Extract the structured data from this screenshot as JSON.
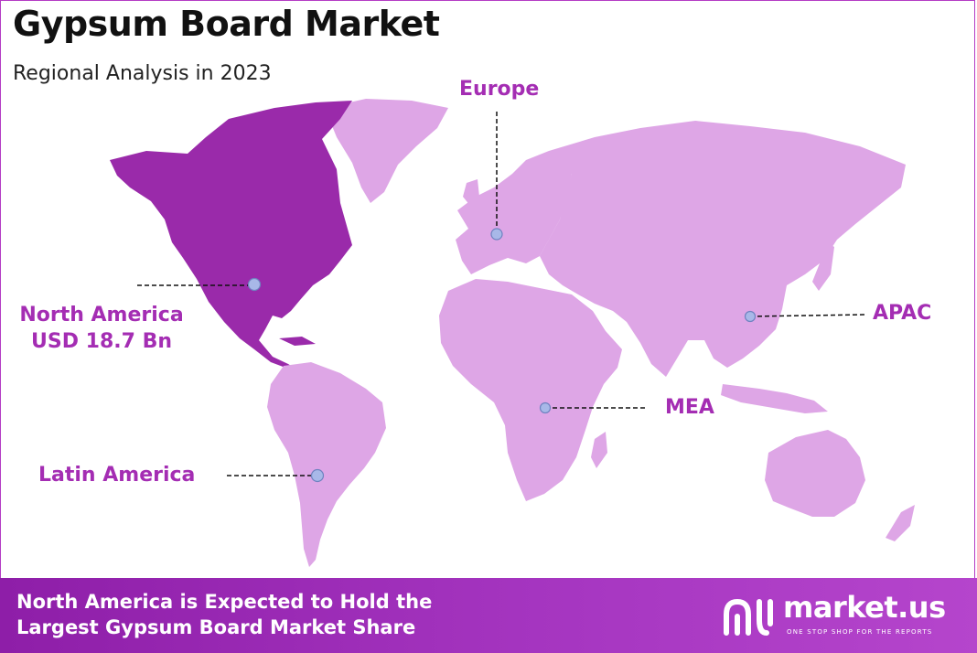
{
  "title": "Gypsum Board Market",
  "subtitle": "Regional Analysis in 2023",
  "regions": {
    "north_america": {
      "name": "North America",
      "value": "USD 18.7 Bn"
    },
    "europe": {
      "name": "Europe"
    },
    "apac": {
      "name": "APAC"
    },
    "mea": {
      "name": "MEA"
    },
    "latin_america": {
      "name": "Latin America"
    }
  },
  "footer": {
    "line1": "North America is Expected to Hold the",
    "line2": "Largest Gypsum Board Market Share"
  },
  "logo": {
    "name": "market.us",
    "tagline": "ONE STOP SHOP FOR THE REPORTS"
  },
  "colors": {
    "highlight": "#9a2aaa",
    "land": "#dea6e6",
    "label": "#a42db3",
    "marker": "#a8b8e8",
    "footer": "#9a2ab4"
  }
}
